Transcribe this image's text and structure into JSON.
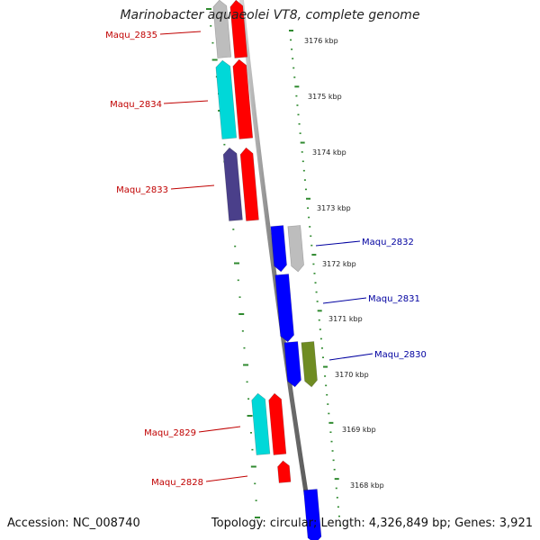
{
  "title": "Marinobacter aquaeolei VT8, complete genome",
  "footer": {
    "accession": "Accession: NC_008740",
    "summary": "Topology: circular; Length: 4,326,849 bp; Genes: 3,921"
  },
  "colors": {
    "forward_strand_label": "#c00000",
    "reverse_strand_label": "#0000a0",
    "backbone": "#8a8a8a",
    "ticks": "#2f8a2f",
    "red_cog": "#ff0000",
    "cyan_cog": "#00d8d8",
    "purple_cog": "#4a3f8a",
    "blue_cog": "#0000ff",
    "olive_cog": "#6f8c22",
    "gray_cog": "#bdbdbd"
  },
  "ticks": [
    "3176 kbp",
    "3175 kbp",
    "3174 kbp",
    "3173 kbp",
    "3172 kbp",
    "3171 kbp",
    "3170 kbp",
    "3169 kbp",
    "3168 kbp"
  ],
  "genes": [
    {
      "label": "Maqu_2835",
      "strand": "left",
      "color_names": [
        "gray_cog",
        "red_cog"
      ]
    },
    {
      "label": "Maqu_2834",
      "strand": "left",
      "color_names": [
        "cyan_cog",
        "red_cog"
      ]
    },
    {
      "label": "Maqu_2833",
      "strand": "left",
      "color_names": [
        "purple_cog",
        "red_cog"
      ]
    },
    {
      "label": "Maqu_2832",
      "strand": "right",
      "color_names": [
        "blue_cog",
        "gray_cog"
      ]
    },
    {
      "label": "Maqu_2831",
      "strand": "right",
      "color_names": [
        "blue_cog"
      ]
    },
    {
      "label": "Maqu_2830",
      "strand": "right",
      "color_names": [
        "blue_cog",
        "olive_cog"
      ]
    },
    {
      "label": "Maqu_2829",
      "strand": "left",
      "color_names": [
        "cyan_cog",
        "red_cog"
      ]
    },
    {
      "label": "Maqu_2828",
      "strand": "left",
      "color_names": [
        "red_cog"
      ]
    }
  ]
}
